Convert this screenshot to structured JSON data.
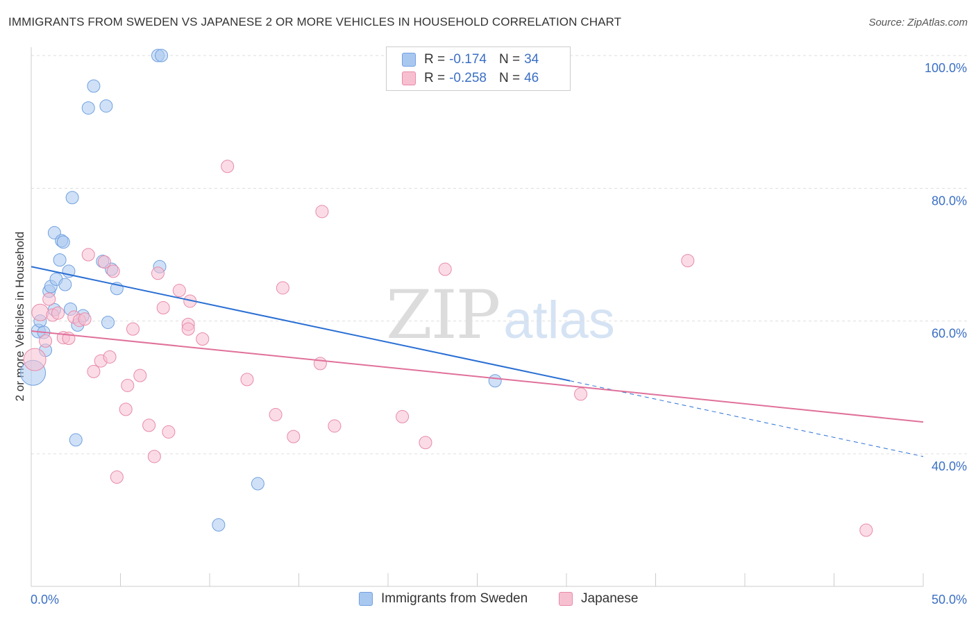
{
  "title": "IMMIGRANTS FROM SWEDEN VS JAPANESE 2 OR MORE VEHICLES IN HOUSEHOLD CORRELATION CHART",
  "source": "Source: ZipAtlas.com",
  "watermark": {
    "zip": "ZIP",
    "atlas": "atlas"
  },
  "legend_box": {
    "rows": [
      {
        "r_label": "R =",
        "r_value": "-0.174",
        "n_label": "N =",
        "n_value": "34",
        "color": "#a9c8f0",
        "border": "#6fa0e0"
      },
      {
        "r_label": "R =",
        "r_value": "-0.258",
        "n_label": "N =",
        "n_value": "46",
        "color": "#f7c0d1",
        "border": "#e88aa8"
      }
    ]
  },
  "bottom_legend": [
    {
      "label": "Immigrants from Sweden",
      "color": "#a9c8f0",
      "border": "#6fa0e0"
    },
    {
      "label": "Japanese",
      "color": "#f7c0d1",
      "border": "#e88aa8"
    }
  ],
  "chart_data": {
    "type": "scatter",
    "title": "IMMIGRANTS FROM SWEDEN VS JAPANESE 2 OR MORE VEHICLES IN HOUSEHOLD CORRELATION CHART",
    "xlabel": "",
    "ylabel": "2 or more Vehicles in Household",
    "xlim": [
      0,
      50
    ],
    "ylim": [
      20,
      102
    ],
    "x_tick_labels": [
      "0.0%",
      "50.0%"
    ],
    "y_ticks": [
      40,
      60,
      80,
      100
    ],
    "y_tick_labels": [
      "40.0%",
      "60.0%",
      "80.0%",
      "100.0%"
    ],
    "grid": true,
    "legend_position": "top-center",
    "series": [
      {
        "name": "Immigrants from Sweden",
        "color": "#a9c8f0",
        "stroke": "#6fa0e0",
        "trend_color": "#2a6fd4",
        "trend": {
          "x0": 0,
          "y0": 68.2,
          "x1": 30.2,
          "y1": 51.0,
          "dash_to_x": 50,
          "dash_to_y": 39.6
        },
        "points": [
          [
            0.1,
            52.2,
            18
          ],
          [
            0.4,
            58.5,
            10
          ],
          [
            0.5,
            60.0,
            9
          ],
          [
            0.7,
            58.3,
            9
          ],
          [
            0.8,
            55.6,
            9
          ],
          [
            1.0,
            64.5,
            9
          ],
          [
            1.1,
            65.2,
            9
          ],
          [
            1.3,
            61.7,
            9
          ],
          [
            1.3,
            73.3,
            9
          ],
          [
            1.4,
            66.3,
            9
          ],
          [
            1.6,
            69.2,
            9
          ],
          [
            1.7,
            72.1,
            9
          ],
          [
            1.8,
            71.9,
            9
          ],
          [
            1.9,
            65.5,
            9
          ],
          [
            2.1,
            67.5,
            9
          ],
          [
            2.2,
            61.8,
            9
          ],
          [
            2.3,
            78.6,
            9
          ],
          [
            2.5,
            42.1,
            9
          ],
          [
            2.6,
            59.4,
            9
          ],
          [
            2.9,
            60.8,
            9
          ],
          [
            3.2,
            92.1,
            9
          ],
          [
            3.5,
            95.4,
            9
          ],
          [
            4.0,
            69.0,
            9
          ],
          [
            4.2,
            92.4,
            9
          ],
          [
            4.3,
            59.8,
            9
          ],
          [
            4.5,
            67.8,
            9
          ],
          [
            4.8,
            64.9,
            9
          ],
          [
            7.1,
            100.0,
            9
          ],
          [
            7.3,
            100.0,
            9
          ],
          [
            7.2,
            68.2,
            9
          ],
          [
            10.5,
            29.3,
            9
          ],
          [
            12.7,
            35.5,
            9
          ],
          [
            26.0,
            51.0,
            9
          ],
          [
            1.2,
            65.8,
            0
          ]
        ]
      },
      {
        "name": "Japanese",
        "color": "#f7c0d1",
        "stroke": "#e88aa8",
        "trend_color": "#e0709a",
        "trend": {
          "x0": 0,
          "y0": 58.5,
          "x1": 50,
          "y1": 44.8
        },
        "points": [
          [
            0.2,
            54.2,
            16
          ],
          [
            0.5,
            61.3,
            12
          ],
          [
            0.8,
            57.0,
            9
          ],
          [
            1.0,
            63.3,
            9
          ],
          [
            1.2,
            60.9,
            9
          ],
          [
            1.5,
            61.2,
            9
          ],
          [
            1.8,
            57.5,
            9
          ],
          [
            2.1,
            57.4,
            9
          ],
          [
            2.4,
            60.6,
            9
          ],
          [
            2.7,
            60.1,
            9
          ],
          [
            3.0,
            60.3,
            9
          ],
          [
            3.2,
            70.0,
            9
          ],
          [
            3.5,
            52.4,
            9
          ],
          [
            3.9,
            54.0,
            9
          ],
          [
            4.1,
            68.9,
            9
          ],
          [
            4.4,
            54.6,
            9
          ],
          [
            4.6,
            67.5,
            9
          ],
          [
            4.8,
            36.5,
            9
          ],
          [
            5.3,
            46.7,
            9
          ],
          [
            5.4,
            50.3,
            9
          ],
          [
            5.7,
            58.8,
            9
          ],
          [
            6.1,
            51.8,
            9
          ],
          [
            6.6,
            44.3,
            9
          ],
          [
            6.9,
            39.6,
            9
          ],
          [
            7.1,
            67.2,
            9
          ],
          [
            7.4,
            62.0,
            9
          ],
          [
            7.7,
            43.3,
            9
          ],
          [
            8.3,
            64.6,
            9
          ],
          [
            8.9,
            63.0,
            9
          ],
          [
            8.8,
            59.5,
            9
          ],
          [
            8.8,
            58.8,
            9
          ],
          [
            9.6,
            57.3,
            9
          ],
          [
            11.0,
            83.3,
            9
          ],
          [
            12.1,
            51.2,
            9
          ],
          [
            13.7,
            45.9,
            9
          ],
          [
            14.1,
            65.0,
            9
          ],
          [
            14.7,
            42.6,
            9
          ],
          [
            16.2,
            53.6,
            9
          ],
          [
            16.3,
            76.5,
            9
          ],
          [
            17.0,
            44.2,
            9
          ],
          [
            20.8,
            45.6,
            9
          ],
          [
            22.1,
            41.7,
            9
          ],
          [
            23.2,
            67.8,
            9
          ],
          [
            30.8,
            49.0,
            9
          ],
          [
            36.8,
            69.1,
            9
          ],
          [
            46.8,
            28.5,
            9
          ]
        ]
      }
    ]
  }
}
